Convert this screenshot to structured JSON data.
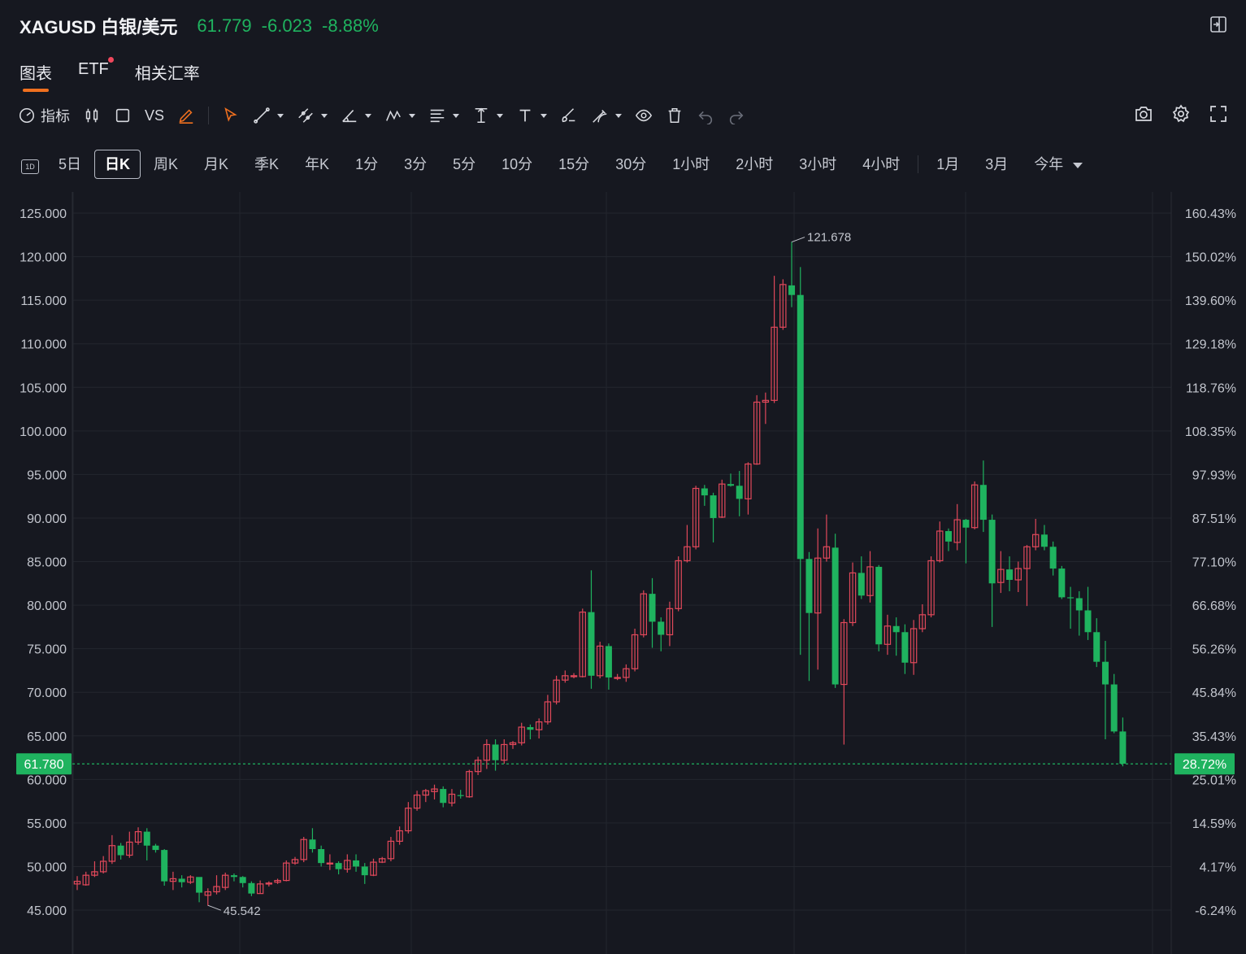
{
  "header": {
    "symbol": "XAGUSD 白银/美元",
    "price": "61.779",
    "change": "-6.023",
    "change_pct": "-8.88%"
  },
  "tabs": [
    {
      "label": "图表",
      "active": true
    },
    {
      "label": "ETF",
      "has_dot": true
    },
    {
      "label": "相关汇率"
    }
  ],
  "toolbar": {
    "indicator_label": "指标",
    "vs_label": "VS"
  },
  "periods": [
    {
      "label": "1D",
      "icon": true
    },
    {
      "label": "5日"
    },
    {
      "label": "日K",
      "active": true
    },
    {
      "label": "周K"
    },
    {
      "label": "月K"
    },
    {
      "label": "季K"
    },
    {
      "label": "年K"
    },
    {
      "label": "1分"
    },
    {
      "label": "3分"
    },
    {
      "label": "5分"
    },
    {
      "label": "10分"
    },
    {
      "label": "15分"
    },
    {
      "label": "30分"
    },
    {
      "label": "1小时"
    },
    {
      "label": "2小时"
    },
    {
      "label": "3小时"
    },
    {
      "label": "4小时"
    },
    {
      "label": "1月"
    },
    {
      "label": "3月"
    },
    {
      "label": "今年",
      "dropdown": true
    }
  ],
  "colors": {
    "up": "#e0485a",
    "down": "#1fb35f",
    "background": "#161820",
    "grid": "#23262e",
    "accent": "#f0701f"
  },
  "chart_data": {
    "type": "candlestick",
    "y_ticks": [
      125,
      120,
      115,
      110,
      105,
      100,
      95,
      90,
      85,
      80,
      75,
      70,
      65,
      60,
      55,
      50,
      45
    ],
    "y_tick_labels": [
      "125.000",
      "120.000",
      "115.000",
      "110.000",
      "105.000",
      "100.000",
      "95.000",
      "90.000",
      "85.000",
      "80.000",
      "75.000",
      "70.000",
      "65.000",
      "60.000",
      "55.000",
      "50.000",
      "45.000"
    ],
    "pct_tick_labels": [
      "160.43%",
      "150.02%",
      "139.60%",
      "129.18%",
      "118.76%",
      "108.35%",
      "97.93%",
      "87.51%",
      "77.10%",
      "66.68%",
      "56.26%",
      "45.84%",
      "35.43%",
      "25.01%",
      "14.59%",
      "4.17%",
      "-6.24%"
    ],
    "ylim": [
      42.5,
      127
    ],
    "last_price_label": "61.780",
    "last_pct_label": "28.72%",
    "last_price": 61.78,
    "annotations": [
      {
        "text": "121.678",
        "index": 82,
        "value": 121.678
      },
      {
        "text": "45.542",
        "index": 15,
        "value": 45.542
      }
    ],
    "candles": [
      [
        48,
        48.3,
        47.3,
        48.9
      ],
      [
        47.9,
        49,
        47.8,
        49.4
      ],
      [
        49,
        49.4,
        48.8,
        50.6
      ],
      [
        49.4,
        50.6,
        49.2,
        51.2
      ],
      [
        50.6,
        52.4,
        50.3,
        53.6
      ],
      [
        52.4,
        51.3,
        50.8,
        52.7
      ],
      [
        51.3,
        52.8,
        51,
        54
      ],
      [
        52.8,
        54,
        52.5,
        54.5
      ],
      [
        54,
        52.4,
        50.7,
        54.4
      ],
      [
        52.4,
        51.9,
        51.6,
        52.6
      ],
      [
        51.9,
        48.3,
        47.8,
        52
      ],
      [
        48.3,
        48.6,
        47.3,
        49.4
      ],
      [
        48.6,
        48.2,
        47.6,
        49
      ],
      [
        48.2,
        48.8,
        48,
        49
      ],
      [
        48.8,
        47,
        45.9,
        48.7
      ],
      [
        46.7,
        47.1,
        45.5,
        47.5
      ],
      [
        47.1,
        47.7,
        46.8,
        49
      ],
      [
        47.6,
        49,
        47.3,
        49.3
      ],
      [
        49,
        48.8,
        48.3,
        49.2
      ],
      [
        48.8,
        48.1,
        47.6,
        48.9
      ],
      [
        48.1,
        46.9,
        46.6,
        48.3
      ],
      [
        46.9,
        48,
        46.9,
        48.4
      ],
      [
        48,
        48.1,
        47.7,
        48.3
      ],
      [
        48.2,
        48.4,
        48,
        48.6
      ],
      [
        48.4,
        50.4,
        48.3,
        50.7
      ],
      [
        50.4,
        50.8,
        50.2,
        51.1
      ],
      [
        50.8,
        53.1,
        50.5,
        53.4
      ],
      [
        53.1,
        52,
        51.6,
        54.4
      ],
      [
        52,
        50.4,
        50,
        52.4
      ],
      [
        50.4,
        50.4,
        49.6,
        51.4
      ],
      [
        50.4,
        49.7,
        49.1,
        50.6
      ],
      [
        49.7,
        50.7,
        49.3,
        51.4
      ],
      [
        50.7,
        50,
        49.4,
        51.4
      ],
      [
        50,
        49,
        48,
        50.4
      ],
      [
        49,
        50.5,
        48.9,
        50.9
      ],
      [
        50.5,
        50.9,
        50.4,
        51.1
      ],
      [
        50.9,
        52.9,
        50.6,
        53.4
      ],
      [
        52.9,
        54.1,
        52.5,
        54.6
      ],
      [
        54.1,
        56.7,
        53.8,
        57.4
      ],
      [
        56.7,
        58.2,
        56.4,
        58.7
      ],
      [
        58.2,
        58.7,
        57.4,
        58.9
      ],
      [
        58.6,
        58.9,
        57.7,
        59.4
      ],
      [
        58.9,
        57.3,
        56.8,
        59.2
      ],
      [
        57.3,
        58.3,
        56.9,
        58.9
      ],
      [
        58.2,
        58.1,
        57.8,
        58.8
      ],
      [
        58,
        60.9,
        57.9,
        61.1
      ],
      [
        60.9,
        62.2,
        60.5,
        62.6
      ],
      [
        62.2,
        64,
        61.2,
        64.6
      ],
      [
        64,
        62.2,
        61,
        64.6
      ],
      [
        62.2,
        64,
        61.8,
        64.6
      ],
      [
        64,
        64.2,
        63.5,
        64.4
      ],
      [
        64.2,
        66,
        63.9,
        66.5
      ],
      [
        66,
        65.7,
        64.6,
        66.3
      ],
      [
        65.7,
        66.6,
        64.7,
        67
      ],
      [
        66.6,
        68.9,
        66.3,
        69.7
      ],
      [
        68.9,
        71.4,
        68.6,
        71.9
      ],
      [
        71.4,
        71.9,
        71.1,
        72.5
      ],
      [
        71.9,
        71.9,
        71.6,
        72.2
      ],
      [
        71.8,
        79.2,
        71.7,
        79.6
      ],
      [
        79.2,
        71.9,
        70.4,
        84
      ],
      [
        71.9,
        75.3,
        71.6,
        75.8
      ],
      [
        75.3,
        71.7,
        70.3,
        75.6
      ],
      [
        71.7,
        71.7,
        71.4,
        72.1
      ],
      [
        71.7,
        72.7,
        71.2,
        73.2
      ],
      [
        72.7,
        76.6,
        72.4,
        77.3
      ],
      [
        76.6,
        81.3,
        76.3,
        81.7
      ],
      [
        81.3,
        78.1,
        75.1,
        83.1
      ],
      [
        78.1,
        76.6,
        74.7,
        78.6
      ],
      [
        76.6,
        79.6,
        75.3,
        80.4
      ],
      [
        79.6,
        85.1,
        79.3,
        85.6
      ],
      [
        85.1,
        86.7,
        84.9,
        89.2
      ],
      [
        86.7,
        93.4,
        86.4,
        93.7
      ],
      [
        93.4,
        92.6,
        91.4,
        93.8
      ],
      [
        92.6,
        90,
        87.2,
        92.9
      ],
      [
        90.1,
        93.9,
        90,
        94.4
      ],
      [
        93.9,
        93.7,
        93.6,
        95.1
      ],
      [
        93.7,
        92.2,
        90.2,
        95.4
      ],
      [
        92.2,
        96.2,
        90.4,
        96.4
      ],
      [
        96.2,
        103.3,
        96.1,
        104.1
      ],
      [
        103.3,
        103.5,
        100.8,
        104.4
      ],
      [
        103.5,
        111.9,
        103.2,
        117.8
      ],
      [
        111.9,
        116.8,
        111.6,
        117.4
      ],
      [
        116.7,
        115.6,
        114.2,
        121.7
      ],
      [
        115.6,
        85.3,
        74.3,
        118.8
      ],
      [
        85.3,
        79.1,
        71.3,
        86.1
      ],
      [
        79.1,
        85.4,
        72.6,
        88.8
      ],
      [
        85.4,
        86.7,
        85,
        90.4
      ],
      [
        86.6,
        70.9,
        70.5,
        88.2
      ],
      [
        70.9,
        78,
        64,
        78.4
      ],
      [
        78,
        83.7,
        77.6,
        84.9
      ],
      [
        83.7,
        81.1,
        80.7,
        85.6
      ],
      [
        81.1,
        84.4,
        80.3,
        86.2
      ],
      [
        84.4,
        75.5,
        74.7,
        84.6
      ],
      [
        75.5,
        77.6,
        74.3,
        78.9
      ],
      [
        77.6,
        76.9,
        74.2,
        78.6
      ],
      [
        76.9,
        73.4,
        72.1,
        77.8
      ],
      [
        73.4,
        77.3,
        72,
        78.3
      ],
      [
        77.3,
        78.9,
        76.9,
        80.1
      ],
      [
        78.9,
        85.1,
        78.6,
        85.6
      ],
      [
        85.1,
        88.5,
        84.9,
        89.6
      ],
      [
        88.5,
        87.3,
        86.2,
        88.8
      ],
      [
        87.2,
        89.8,
        86.3,
        91.6
      ],
      [
        89.8,
        88.9,
        84.8,
        89.9
      ],
      [
        88.9,
        93.8,
        88.7,
        94.2
      ],
      [
        93.8,
        89.8,
        88.4,
        96.6
      ],
      [
        89.8,
        82.5,
        77.5,
        90.4
      ],
      [
        82.6,
        84.1,
        81.4,
        86.2
      ],
      [
        84.1,
        82.9,
        81.6,
        85.6
      ],
      [
        82.9,
        84.2,
        81.5,
        85
      ],
      [
        84.2,
        86.7,
        79.9,
        86.9
      ],
      [
        86.7,
        88.1,
        86.3,
        89.9
      ],
      [
        88.1,
        86.7,
        86.3,
        89.2
      ],
      [
        86.7,
        84.2,
        83.4,
        87.3
      ],
      [
        84.2,
        80.9,
        80.7,
        84.5
      ],
      [
        80.9,
        80.8,
        77.3,
        82.1
      ],
      [
        80.8,
        79.4,
        76.5,
        81.6
      ],
      [
        79.4,
        76.9,
        76,
        82.1
      ],
      [
        76.9,
        73.5,
        72.9,
        78.5
      ],
      [
        73.5,
        70.9,
        64.6,
        75.9
      ],
      [
        70.9,
        65.5,
        65.3,
        72.1
      ],
      [
        65.5,
        61.8,
        61.5,
        67.1
      ]
    ]
  }
}
